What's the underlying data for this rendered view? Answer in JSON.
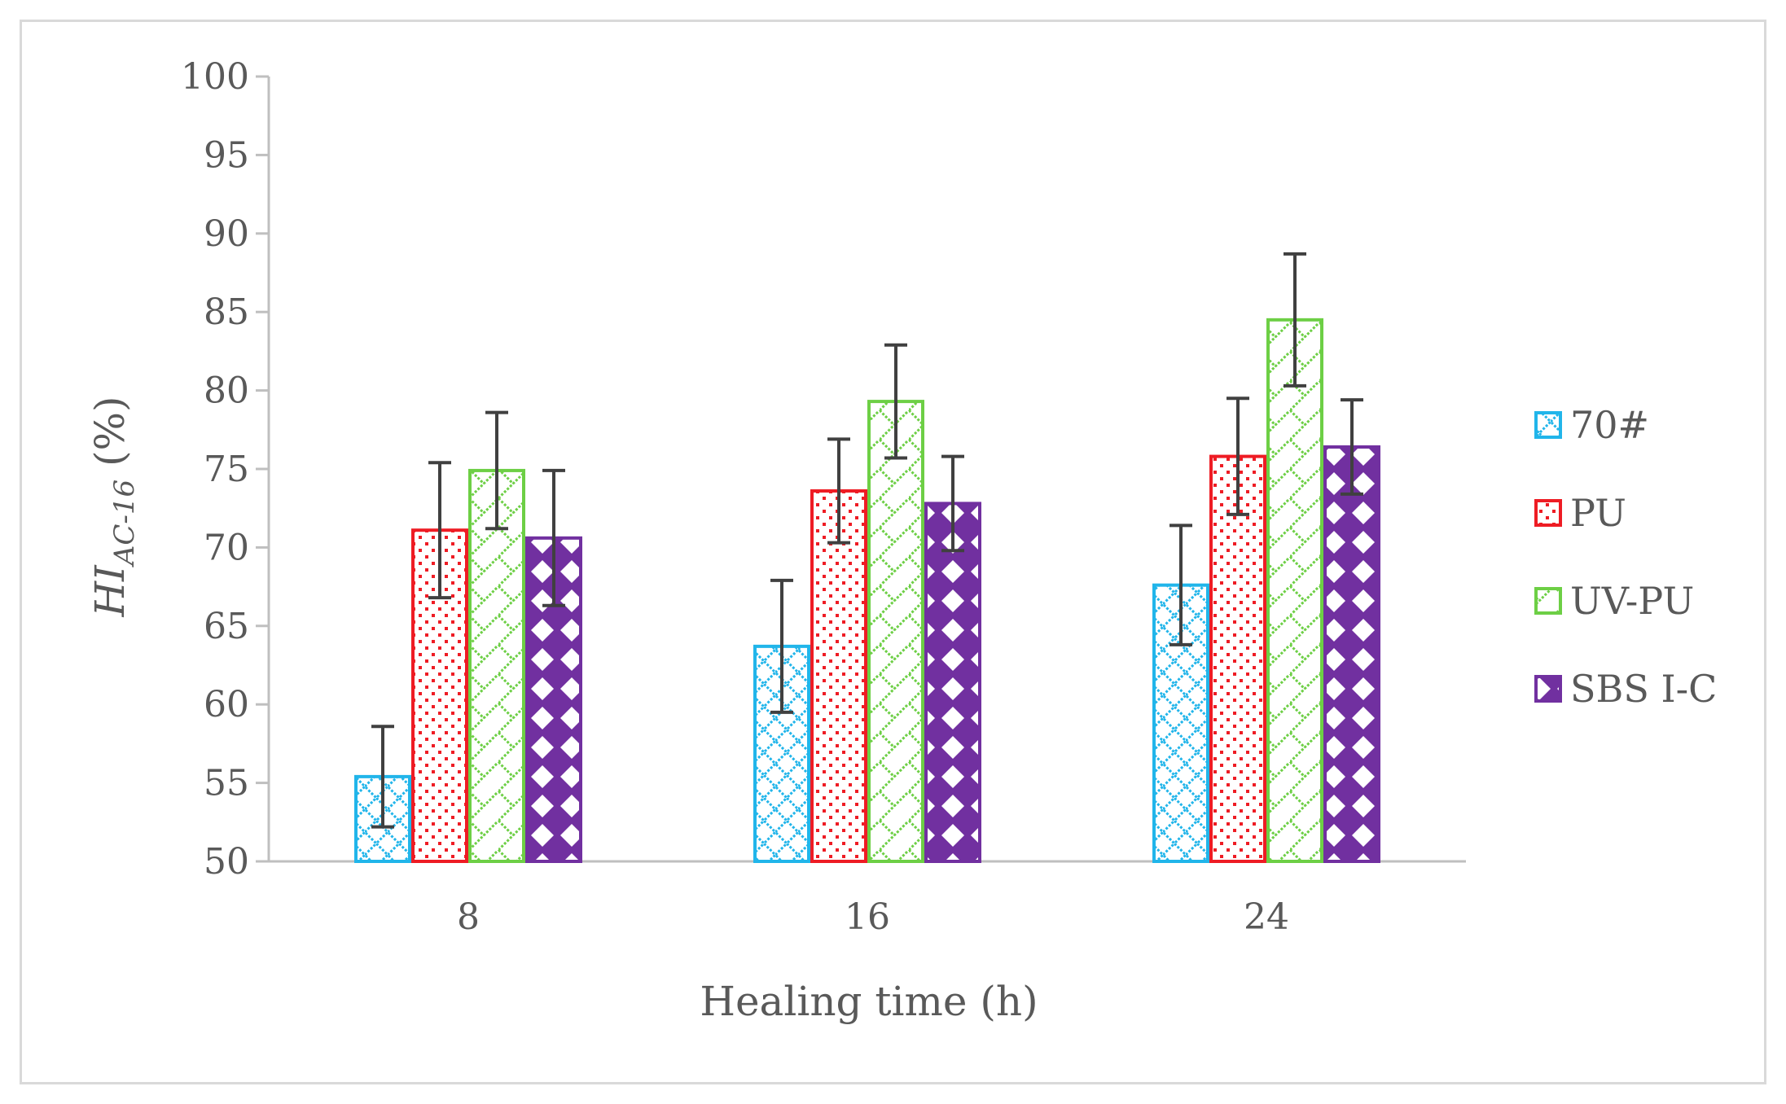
{
  "colors": {
    "70#": "#21b5ea",
    "PU": "#ee1c24",
    "UV-PU": "#6dcf45",
    "SBS I-C": "#7130a0",
    "axis": "#bfbfbf",
    "text": "#595959",
    "error_bar": "#404040"
  },
  "chart_data": {
    "type": "bar",
    "title": "",
    "xlabel": "Healing time (h)",
    "ylabel": {
      "main": "HI",
      "subscript": "AC-16",
      "unit": " (%)"
    },
    "ylim": [
      50,
      100
    ],
    "yticks": [
      "50",
      "55",
      "60",
      "65",
      "70",
      "75",
      "80",
      "85",
      "90",
      "95",
      "100"
    ],
    "categories": [
      "8",
      "16",
      "24"
    ],
    "grid": false,
    "legend_position": "right",
    "series": [
      {
        "name": "70#",
        "pattern": "diamond-lattice",
        "values": [
          55.4,
          63.7,
          67.6
        ],
        "error": [
          3.2,
          4.2,
          3.8
        ]
      },
      {
        "name": "PU",
        "pattern": "dots",
        "values": [
          71.1,
          73.6,
          75.8
        ],
        "error": [
          4.3,
          3.3,
          3.7
        ]
      },
      {
        "name": "UV-PU",
        "pattern": "diagonal-zigzag",
        "values": [
          74.9,
          79.3,
          84.5
        ],
        "error": [
          3.7,
          3.6,
          4.2
        ]
      },
      {
        "name": "SBS I-C",
        "pattern": "large-diamonds",
        "values": [
          70.6,
          72.8,
          76.4
        ],
        "error": [
          4.3,
          3.0,
          3.0
        ]
      }
    ]
  }
}
